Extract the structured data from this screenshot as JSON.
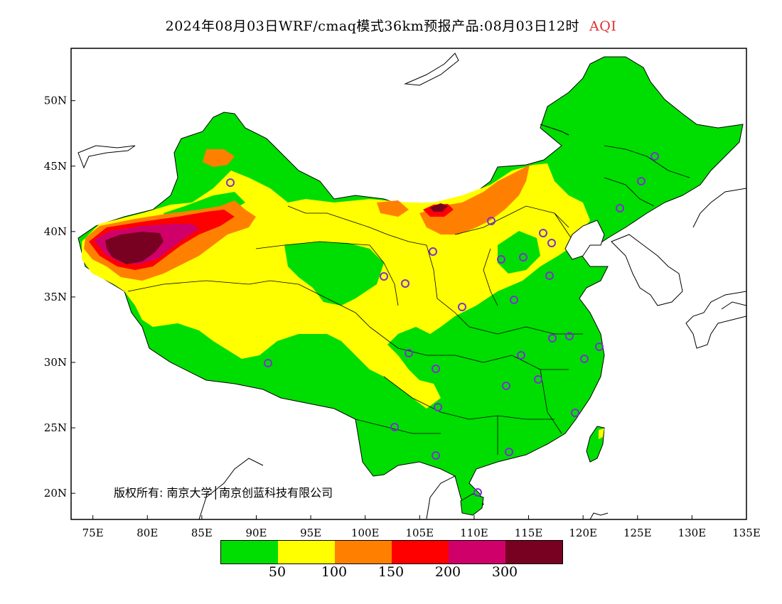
{
  "title": {
    "main": "2024年08月03日WRF/cmaq模式36km预报产品:08月03日12时",
    "variable": "AQI"
  },
  "map": {
    "lon_range": [
      73,
      135
    ],
    "lat_range": [
      18,
      54
    ],
    "lon_ticks": [
      "75E",
      "80E",
      "85E",
      "90E",
      "95E",
      "100E",
      "105E",
      "110E",
      "115E",
      "120E",
      "125E",
      "130E",
      "135E"
    ],
    "lon_tick_values": [
      75,
      80,
      85,
      90,
      95,
      100,
      105,
      110,
      115,
      120,
      125,
      130,
      135
    ],
    "lat_ticks": [
      "20N",
      "25N",
      "30N",
      "35N",
      "40N",
      "45N",
      "50N"
    ],
    "lat_tick_values": [
      20,
      25,
      30,
      35,
      40,
      45,
      50
    ],
    "colors": {
      "good": "#00dd00",
      "moderate": "#ffff00",
      "usg": "#ff8000",
      "unhealthy": "#ff0000",
      "very_unhealthy": "#d0006a",
      "hazardous": "#780020",
      "station_marker": "#7d30d0"
    }
  },
  "copyright": "版权所有: 南京大学│南京创蓝科技有限公司",
  "legend": {
    "colors": [
      "#00dd00",
      "#ffff00",
      "#ff8000",
      "#ff0000",
      "#d0006a",
      "#780020"
    ],
    "labels": [
      "50",
      "100",
      "150",
      "200",
      "300"
    ]
  }
}
